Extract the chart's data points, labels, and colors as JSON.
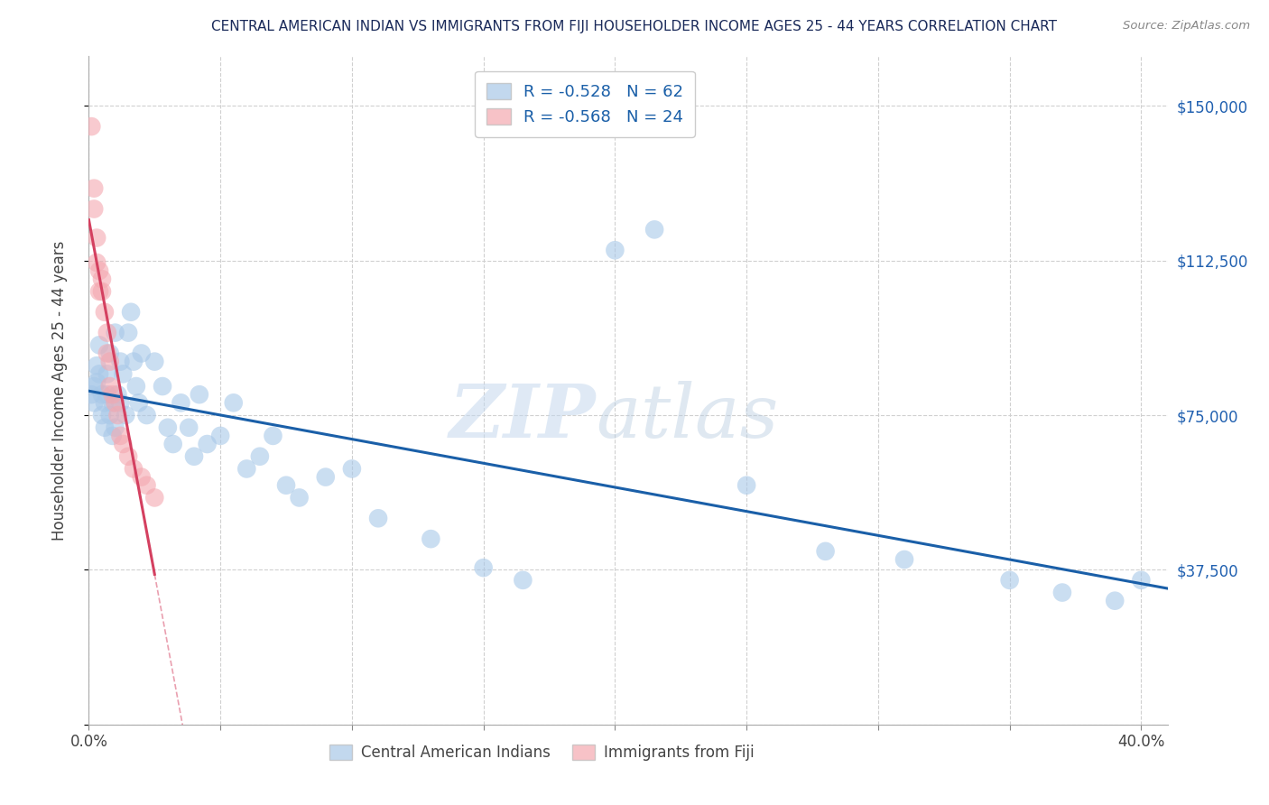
{
  "title": "CENTRAL AMERICAN INDIAN VS IMMIGRANTS FROM FIJI HOUSEHOLDER INCOME AGES 25 - 44 YEARS CORRELATION CHART",
  "source": "Source: ZipAtlas.com",
  "ylabel": "Householder Income Ages 25 - 44 years",
  "yticks": [
    0,
    37500,
    75000,
    112500,
    150000
  ],
  "ytick_labels": [
    "",
    "$37,500",
    "$75,000",
    "$112,500",
    "$150,000"
  ],
  "legend_blue_r": "-0.528",
  "legend_blue_n": "62",
  "legend_pink_r": "-0.568",
  "legend_pink_n": "24",
  "blue_color": "#a8c8e8",
  "pink_color": "#f4a8b0",
  "blue_line_color": "#1a5fa8",
  "pink_line_color": "#d44060",
  "watermark_zip": "ZIP",
  "watermark_atlas": "atlas",
  "blue_scatter_x": [
    0.001,
    0.002,
    0.002,
    0.003,
    0.003,
    0.004,
    0.004,
    0.005,
    0.005,
    0.006,
    0.006,
    0.007,
    0.007,
    0.008,
    0.008,
    0.009,
    0.009,
    0.01,
    0.01,
    0.011,
    0.012,
    0.012,
    0.013,
    0.014,
    0.015,
    0.016,
    0.017,
    0.018,
    0.019,
    0.02,
    0.022,
    0.025,
    0.028,
    0.03,
    0.032,
    0.035,
    0.038,
    0.04,
    0.042,
    0.045,
    0.05,
    0.055,
    0.06,
    0.065,
    0.07,
    0.075,
    0.08,
    0.09,
    0.1,
    0.11,
    0.13,
    0.15,
    0.165,
    0.2,
    0.215,
    0.25,
    0.28,
    0.31,
    0.35,
    0.37,
    0.39,
    0.4
  ],
  "blue_scatter_y": [
    80000,
    82000,
    78000,
    87000,
    83000,
    92000,
    85000,
    80000,
    75000,
    78000,
    72000,
    80000,
    85000,
    75000,
    90000,
    70000,
    78000,
    95000,
    72000,
    80000,
    88000,
    78000,
    85000,
    75000,
    95000,
    100000,
    88000,
    82000,
    78000,
    90000,
    75000,
    88000,
    82000,
    72000,
    68000,
    78000,
    72000,
    65000,
    80000,
    68000,
    70000,
    78000,
    62000,
    65000,
    70000,
    58000,
    55000,
    60000,
    62000,
    50000,
    45000,
    38000,
    35000,
    115000,
    120000,
    58000,
    42000,
    40000,
    35000,
    32000,
    30000,
    35000
  ],
  "pink_scatter_x": [
    0.001,
    0.002,
    0.002,
    0.003,
    0.003,
    0.004,
    0.004,
    0.005,
    0.005,
    0.006,
    0.007,
    0.007,
    0.008,
    0.008,
    0.009,
    0.01,
    0.011,
    0.012,
    0.013,
    0.015,
    0.017,
    0.02,
    0.022,
    0.025
  ],
  "pink_scatter_y": [
    145000,
    130000,
    125000,
    118000,
    112000,
    110000,
    105000,
    105000,
    108000,
    100000,
    95000,
    90000,
    88000,
    82000,
    80000,
    78000,
    75000,
    70000,
    68000,
    65000,
    62000,
    60000,
    58000,
    55000
  ],
  "xlim": [
    0.0,
    0.41
  ],
  "ylim": [
    0,
    162000
  ],
  "background_color": "#ffffff",
  "grid_color": "#d0d0d0"
}
